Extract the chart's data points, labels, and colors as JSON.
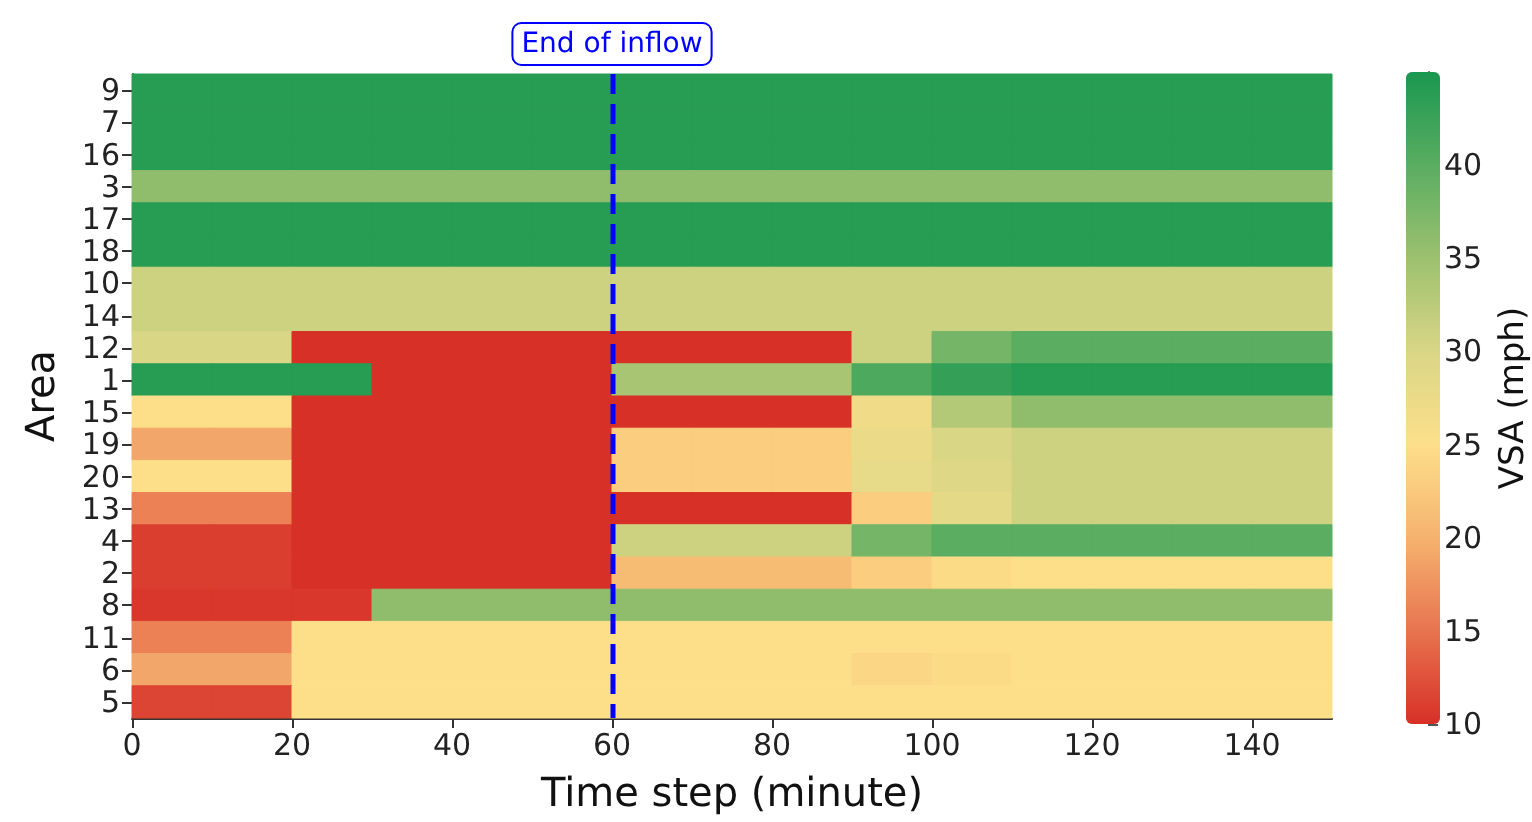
{
  "chart_data": {
    "type": "heatmap",
    "xlabel": "Time step (minute)",
    "ylabel": "Area",
    "clabel": "VSA (mph)",
    "x": [
      5,
      15,
      25,
      35,
      45,
      55,
      65,
      75,
      85,
      95,
      105,
      115,
      125,
      135,
      145
    ],
    "xlim": [
      0,
      150
    ],
    "xticks": [
      0,
      20,
      40,
      60,
      80,
      100,
      120,
      140
    ],
    "y_categories": [
      "9",
      "7",
      "16",
      "3",
      "17",
      "18",
      "10",
      "14",
      "12",
      "1",
      "15",
      "19",
      "20",
      "13",
      "4",
      "2",
      "8",
      "11",
      "6",
      "5"
    ],
    "cells": [
      [
        44,
        44,
        44,
        44,
        44,
        44,
        44,
        44,
        44,
        44,
        44,
        44,
        44,
        44,
        44
      ],
      [
        44,
        44,
        44,
        44,
        44,
        44,
        44,
        44,
        44,
        44,
        44,
        44,
        44,
        44,
        44
      ],
      [
        44,
        44,
        44,
        44,
        44,
        44,
        44,
        44,
        44,
        44,
        44,
        44,
        44,
        44,
        44
      ],
      [
        36,
        36,
        36,
        36,
        36,
        36,
        36,
        36,
        36,
        36,
        36,
        36,
        36,
        36,
        36
      ],
      [
        44,
        44,
        44,
        44,
        44,
        44,
        44,
        44,
        44,
        44,
        44,
        44,
        44,
        44,
        44
      ],
      [
        44,
        44,
        44,
        44,
        44,
        44,
        44,
        44,
        44,
        44,
        44,
        44,
        44,
        44,
        44
      ],
      [
        31,
        31,
        31,
        31,
        31,
        31,
        31,
        31,
        31,
        31,
        31,
        31,
        31,
        31,
        31
      ],
      [
        31,
        31,
        31,
        31,
        31,
        31,
        31,
        31,
        31,
        31,
        31,
        31,
        31,
        31,
        31
      ],
      [
        30,
        30,
        10,
        10,
        10,
        10,
        10,
        10,
        10,
        31,
        38,
        40,
        40,
        40,
        40
      ],
      [
        44,
        44,
        44,
        10,
        10,
        10,
        34,
        34,
        34,
        41,
        43,
        44,
        44,
        44,
        44
      ],
      [
        25,
        25,
        10,
        10,
        10,
        10,
        10,
        10,
        10,
        27,
        33,
        36,
        36,
        36,
        36
      ],
      [
        19,
        19,
        10,
        10,
        10,
        10,
        23,
        23,
        23,
        27.5,
        30,
        31,
        31,
        31,
        31
      ],
      [
        25,
        25,
        10,
        10,
        10,
        10,
        23,
        23,
        23,
        28,
        29.5,
        31,
        31,
        31,
        31
      ],
      [
        16,
        16,
        10,
        10,
        10,
        10,
        10,
        10,
        10,
        23,
        28.5,
        31,
        31,
        31,
        31
      ],
      [
        11,
        11,
        10,
        10,
        10,
        10,
        31,
        31,
        31,
        38,
        40,
        40,
        40,
        40,
        40
      ],
      [
        11,
        11,
        10,
        10,
        10,
        10,
        21,
        21,
        21,
        23,
        24.5,
        25,
        25,
        25,
        25
      ],
      [
        10.5,
        10.5,
        10.5,
        36,
        36,
        36,
        36,
        36,
        36,
        36,
        36,
        36,
        36,
        36,
        36
      ],
      [
        16,
        16,
        25,
        25,
        25,
        25,
        25,
        25,
        25,
        25,
        25,
        25,
        25,
        25,
        25
      ],
      [
        19,
        19,
        25,
        25,
        25,
        25,
        25,
        25,
        25,
        24,
        24.5,
        25,
        25,
        25,
        25
      ],
      [
        11.5,
        11.5,
        25,
        25,
        25,
        25,
        25,
        25,
        25,
        25,
        25,
        25,
        25,
        25,
        25
      ]
    ],
    "clim": [
      10,
      45
    ],
    "cticks": [
      10,
      15,
      20,
      25,
      30,
      35,
      40
    ],
    "ref_lines": [
      {
        "axis": "x",
        "value": 60,
        "label": "End of inflow",
        "color": "#0000ff",
        "line_style": "dashed"
      }
    ]
  }
}
